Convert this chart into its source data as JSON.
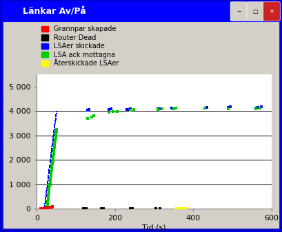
{
  "title": "Länkar Av/På",
  "xlabel": "Tid (s)",
  "xlim": [
    0,
    600
  ],
  "ylim": [
    0,
    5500
  ],
  "yticks": [
    0,
    1000,
    2000,
    3000,
    4000,
    5000
  ],
  "ytick_labels": [
    "0",
    "1 000",
    "2 000",
    "3 000",
    "4 000",
    "5 000"
  ],
  "xticks": [
    0,
    200,
    400,
    600
  ],
  "xtick_labels": [
    "0",
    "200",
    "400",
    "600"
  ],
  "window_bg": "#d4d0c8",
  "titlebar_color": "#0000ff",
  "plot_bg": "#ffffff",
  "border_color": "#0000cc",
  "legend": [
    {
      "label": "Grannpar skapade",
      "color": "#ff0000"
    },
    {
      "label": "Router Dead",
      "color": "#000000"
    },
    {
      "label": "LSAer skickade",
      "color": "#0000ff"
    },
    {
      "label": "LSA ack mottagna",
      "color": "#00cc00"
    },
    {
      "label": "Återskickade LSAer",
      "color": "#ffff00"
    }
  ],
  "red_x": [
    10,
    11,
    12,
    13,
    14,
    15,
    16,
    17,
    18,
    19,
    20,
    21,
    22,
    23,
    24,
    25,
    26,
    27,
    28,
    29,
    30,
    31,
    32,
    33,
    34,
    35,
    36,
    37,
    38,
    39,
    40
  ],
  "red_y": [
    5,
    8,
    10,
    12,
    15,
    18,
    20,
    22,
    25,
    28,
    30,
    32,
    35,
    38,
    40,
    42,
    45,
    48,
    50,
    52,
    55,
    58,
    60,
    62,
    65,
    68,
    70,
    72,
    75,
    78,
    80
  ],
  "blue_dense_x": [
    20,
    20,
    21,
    21,
    22,
    22,
    23,
    23,
    24,
    24,
    25,
    25,
    26,
    26,
    27,
    27,
    28,
    28,
    29,
    29,
    30,
    30,
    31,
    31,
    32,
    32,
    33,
    33,
    34,
    34,
    35,
    35,
    36,
    36,
    37,
    37,
    38,
    38,
    39,
    39,
    40,
    40,
    41,
    41,
    42,
    42,
    43,
    43,
    44,
    44,
    45,
    45,
    46,
    46,
    47,
    47,
    48,
    48,
    49,
    49,
    50,
    50
  ],
  "blue_dense_y": [
    0,
    65,
    130,
    195,
    260,
    325,
    390,
    455,
    520,
    585,
    650,
    715,
    780,
    845,
    910,
    975,
    1040,
    1105,
    1170,
    1235,
    1300,
    1365,
    1430,
    1495,
    1560,
    1625,
    1690,
    1755,
    1820,
    1885,
    1950,
    2015,
    2080,
    2145,
    2210,
    2275,
    2340,
    2405,
    2470,
    2535,
    2600,
    2665,
    2730,
    2795,
    2860,
    2925,
    2990,
    3055,
    3120,
    3185,
    3250,
    3315,
    3380,
    3445,
    3510,
    3575,
    3640,
    3705,
    3770,
    3835,
    3900,
    3965
  ],
  "blue_sparse_x": [
    130,
    133,
    185,
    190,
    230,
    235,
    240,
    310,
    315,
    320,
    345,
    430,
    435,
    490,
    495,
    560,
    565,
    575
  ],
  "blue_sparse_y": [
    4030,
    4060,
    4060,
    4090,
    4060,
    4070,
    4090,
    4080,
    4095,
    4100,
    4110,
    4120,
    4140,
    4150,
    4160,
    4130,
    4145,
    4165
  ],
  "green_dense_x": [
    26,
    26,
    27,
    27,
    28,
    28,
    29,
    29,
    30,
    30,
    31,
    31,
    32,
    32,
    33,
    33,
    34,
    34,
    35,
    35,
    36,
    36,
    37,
    37,
    38,
    38,
    39,
    39,
    40,
    40,
    41,
    41,
    42,
    42,
    43,
    43,
    44,
    44,
    45,
    45,
    46,
    46,
    47,
    47,
    48,
    48,
    49,
    49,
    50,
    50
  ],
  "green_dense_y": [
    0,
    66,
    132,
    198,
    264,
    330,
    396,
    462,
    528,
    594,
    660,
    726,
    792,
    858,
    924,
    990,
    1056,
    1122,
    1188,
    1254,
    1320,
    1386,
    1452,
    1518,
    1584,
    1650,
    1716,
    1782,
    1848,
    1914,
    1980,
    2046,
    2112,
    2178,
    2244,
    2310,
    2376,
    2442,
    2508,
    2574,
    2640,
    2706,
    2772,
    2838,
    2904,
    2970,
    3036,
    3102,
    3168,
    3234
  ],
  "green_sparse_x": [
    130,
    140,
    145,
    185,
    195,
    205,
    240,
    248,
    310,
    320,
    350,
    355,
    430,
    490,
    560,
    570
  ],
  "green_sparse_y": [
    3700,
    3760,
    3820,
    3960,
    3975,
    3985,
    4040,
    4060,
    4060,
    4075,
    4080,
    4105,
    4105,
    4100,
    4100,
    4115
  ],
  "black_x": [
    120,
    126,
    165,
    170,
    240,
    245,
    305,
    315
  ],
  "black_y": [
    20,
    20,
    20,
    20,
    20,
    20,
    20,
    20
  ],
  "yellow_x": [
    355,
    360,
    365,
    370,
    375,
    380
  ],
  "yellow_y": [
    20,
    20,
    20,
    20,
    20,
    20
  ]
}
